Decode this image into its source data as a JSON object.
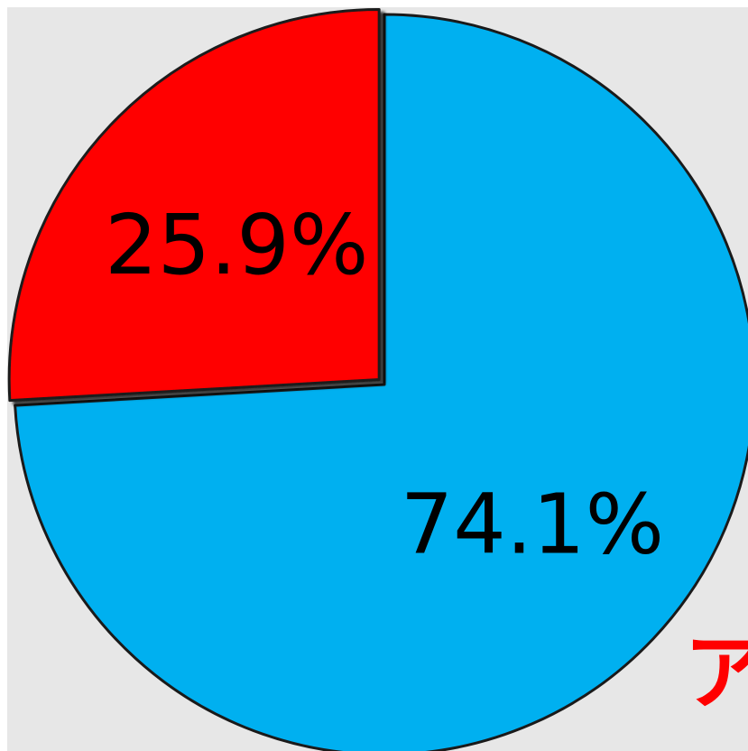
{
  "chart_data": {
    "type": "pie",
    "start_angle_deg": 0,
    "direction": "clockwise",
    "slices": [
      {
        "label": "74.1%",
        "value": 74.1,
        "color": "#00b0f0"
      },
      {
        "label": "25.9%",
        "value": 25.9,
        "color": "#ff0000",
        "exploded": true
      }
    ]
  },
  "annotation": {
    "text": "ア",
    "color": "#ff0000"
  }
}
